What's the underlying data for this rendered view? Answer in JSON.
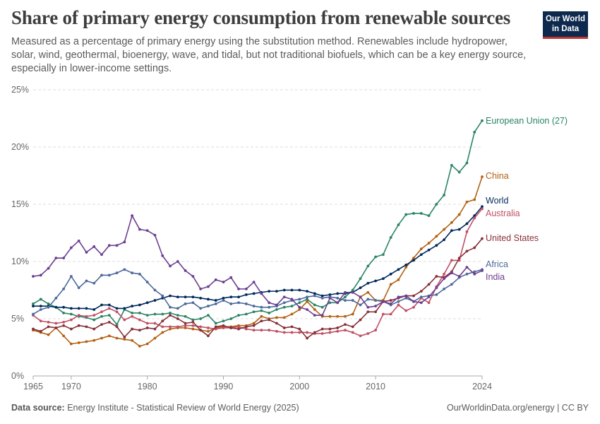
{
  "header": {
    "title": "Share of primary energy consumption from renewable sources",
    "subtitle": "Measured as a percentage of primary energy using the substitution method. Renewables include hydropower, solar, wind, geothermal, bioenergy, wave, and tidal, but not traditional biofuels, which can be a key energy source, especially in lower-income settings.",
    "logo_line1": "Our World",
    "logo_line2": "in Data"
  },
  "footer": {
    "source_label": "Data source:",
    "source_text": "Energy Institute - Statistical Review of World Energy (2025)",
    "url": "OurWorldinData.org/energy | CC BY"
  },
  "chart_data": {
    "type": "line",
    "ylim": [
      0,
      25
    ],
    "xlim": [
      1965,
      2024
    ],
    "y_ticks": [
      0,
      5,
      10,
      15,
      20,
      25
    ],
    "y_tick_labels": [
      "0%",
      "5%",
      "10%",
      "15%",
      "20%",
      "25%"
    ],
    "x_ticks": [
      1965,
      1970,
      1980,
      1990,
      2000,
      2010,
      2024
    ],
    "x_tick_labels": [
      "1965",
      "1970",
      "1980",
      "1990",
      "2000",
      "2010",
      "2024"
    ],
    "grid": "horizontal dashed",
    "legend": "labels at line ends (right)",
    "x": [
      1965,
      1966,
      1967,
      1968,
      1969,
      1970,
      1971,
      1972,
      1973,
      1974,
      1975,
      1976,
      1977,
      1978,
      1979,
      1980,
      1981,
      1982,
      1983,
      1984,
      1985,
      1986,
      1987,
      1988,
      1989,
      1990,
      1991,
      1992,
      1993,
      1994,
      1995,
      1996,
      1997,
      1998,
      1999,
      2000,
      2001,
      2002,
      2003,
      2004,
      2005,
      2006,
      2007,
      2008,
      2009,
      2010,
      2011,
      2012,
      2013,
      2014,
      2015,
      2016,
      2017,
      2018,
      2019,
      2020,
      2021,
      2022,
      2023,
      2024
    ],
    "series": [
      {
        "name": "European Union (27)",
        "color": "#2b8465",
        "values": [
          6.3,
          6.7,
          6.3,
          6.0,
          5.5,
          5.4,
          5.2,
          5.1,
          4.9,
          5.2,
          5.3,
          4.5,
          5.8,
          5.5,
          5.5,
          5.3,
          5.4,
          5.4,
          5.5,
          5.3,
          5.2,
          4.9,
          5.0,
          5.3,
          4.6,
          4.8,
          5.0,
          5.3,
          5.4,
          5.6,
          5.7,
          5.5,
          5.8,
          6.0,
          6.1,
          6.4,
          6.7,
          6.2,
          6.0,
          6.4,
          6.4,
          6.9,
          7.5,
          8.5,
          9.6,
          10.4,
          10.6,
          12.1,
          13.2,
          14.1,
          14.2,
          14.2,
          14.0,
          15.0,
          15.8,
          18.4,
          17.8,
          18.6,
          21.3,
          22.3
        ]
      },
      {
        "name": "China",
        "color": "#b16214",
        "values": [
          4.0,
          3.8,
          3.6,
          4.2,
          3.5,
          2.8,
          2.9,
          3.0,
          3.1,
          3.3,
          3.5,
          3.3,
          3.2,
          3.1,
          2.6,
          2.8,
          3.3,
          3.8,
          4.1,
          4.2,
          4.2,
          4.1,
          4.0,
          3.9,
          4.2,
          4.3,
          4.3,
          4.4,
          4.4,
          4.6,
          5.2,
          5.0,
          5.1,
          5.1,
          5.4,
          5.8,
          6.5,
          5.8,
          5.2,
          5.2,
          5.2,
          5.2,
          5.4,
          6.9,
          7.3,
          6.6,
          6.6,
          8.0,
          8.4,
          9.5,
          10.3,
          11.1,
          11.6,
          12.2,
          12.8,
          13.4,
          14.1,
          15.2,
          15.4,
          17.4
        ]
      },
      {
        "name": "World",
        "color": "#00295b",
        "values": [
          6.1,
          6.1,
          6.1,
          6.0,
          6.0,
          5.9,
          5.9,
          5.9,
          5.8,
          6.2,
          6.2,
          5.9,
          5.9,
          6.1,
          6.2,
          6.4,
          6.6,
          6.8,
          7.0,
          6.9,
          6.9,
          6.9,
          6.8,
          6.7,
          6.6,
          6.8,
          6.9,
          6.9,
          7.1,
          7.2,
          7.3,
          7.4,
          7.4,
          7.5,
          7.5,
          7.5,
          7.4,
          7.2,
          7.0,
          7.1,
          7.2,
          7.2,
          7.3,
          7.7,
          8.1,
          8.3,
          8.5,
          8.9,
          9.3,
          9.7,
          10.1,
          10.6,
          11.0,
          11.4,
          11.9,
          12.7,
          12.8,
          13.3,
          14.0,
          14.8
        ]
      },
      {
        "name": "Australia",
        "color": "#c15065",
        "values": [
          5.3,
          4.8,
          4.7,
          4.6,
          4.7,
          4.9,
          5.3,
          5.2,
          5.3,
          5.6,
          5.9,
          5.6,
          4.9,
          5.2,
          4.9,
          4.6,
          4.6,
          4.3,
          4.3,
          4.3,
          4.4,
          4.4,
          4.3,
          4.2,
          4.1,
          4.2,
          4.2,
          4.3,
          4.1,
          4.0,
          4.0,
          4.0,
          3.9,
          3.8,
          3.8,
          3.8,
          3.8,
          3.7,
          3.7,
          3.8,
          3.9,
          4.0,
          3.8,
          3.5,
          3.7,
          4.0,
          5.4,
          5.4,
          6.2,
          5.7,
          6.0,
          6.8,
          6.4,
          7.8,
          8.9,
          10.1,
          10.1,
          12.6,
          13.8,
          14.6
        ]
      },
      {
        "name": "United States",
        "color": "#883039",
        "values": [
          4.1,
          3.9,
          4.3,
          4.2,
          4.4,
          4.1,
          4.4,
          4.3,
          4.1,
          4.5,
          4.7,
          4.3,
          3.4,
          4.1,
          4.0,
          4.2,
          4.1,
          4.8,
          5.3,
          5.0,
          4.6,
          4.7,
          4.0,
          3.5,
          4.3,
          4.4,
          4.2,
          4.1,
          4.3,
          4.4,
          4.8,
          4.9,
          4.6,
          4.2,
          4.3,
          4.1,
          3.3,
          3.8,
          4.1,
          4.1,
          4.2,
          4.5,
          4.3,
          4.9,
          5.6,
          5.6,
          6.5,
          6.6,
          6.8,
          7.0,
          7.0,
          7.4,
          8.0,
          8.7,
          8.6,
          9.1,
          10.3,
          10.9,
          11.2,
          12.0
        ]
      },
      {
        "name": "Africa",
        "color": "#4c6a9c",
        "values": [
          5.4,
          5.8,
          6.0,
          6.8,
          7.6,
          8.7,
          7.7,
          8.3,
          8.1,
          8.8,
          8.8,
          9.0,
          9.3,
          9.0,
          8.9,
          8.2,
          7.5,
          7.0,
          6.0,
          5.9,
          6.3,
          6.4,
          5.9,
          6.1,
          6.3,
          6.6,
          6.3,
          6.4,
          6.3,
          6.1,
          6.0,
          6.0,
          6.1,
          6.4,
          6.6,
          6.7,
          6.9,
          7.0,
          6.8,
          6.9,
          6.8,
          6.6,
          6.6,
          6.2,
          6.7,
          6.6,
          6.5,
          6.2,
          6.5,
          6.8,
          6.5,
          6.9,
          7.0,
          7.1,
          7.6,
          8.0,
          8.6,
          8.9,
          9.1,
          9.3
        ]
      },
      {
        "name": "India",
        "color": "#6d3e91",
        "values": [
          8.7,
          8.8,
          9.4,
          10.3,
          10.3,
          11.2,
          11.8,
          10.8,
          11.3,
          10.6,
          11.4,
          11.4,
          11.7,
          14.0,
          12.8,
          12.7,
          12.3,
          10.5,
          9.6,
          10.0,
          9.2,
          8.7,
          7.6,
          7.8,
          8.4,
          8.2,
          8.6,
          7.6,
          7.6,
          8.2,
          7.2,
          6.4,
          6.2,
          6.9,
          6.7,
          6.0,
          5.8,
          5.3,
          5.3,
          6.8,
          6.4,
          7.3,
          7.3,
          6.9,
          6.0,
          6.1,
          6.5,
          6.3,
          6.9,
          7.0,
          6.5,
          6.4,
          6.9,
          7.7,
          8.5,
          9.0,
          8.7,
          9.5,
          8.9,
          9.2
        ]
      }
    ]
  }
}
